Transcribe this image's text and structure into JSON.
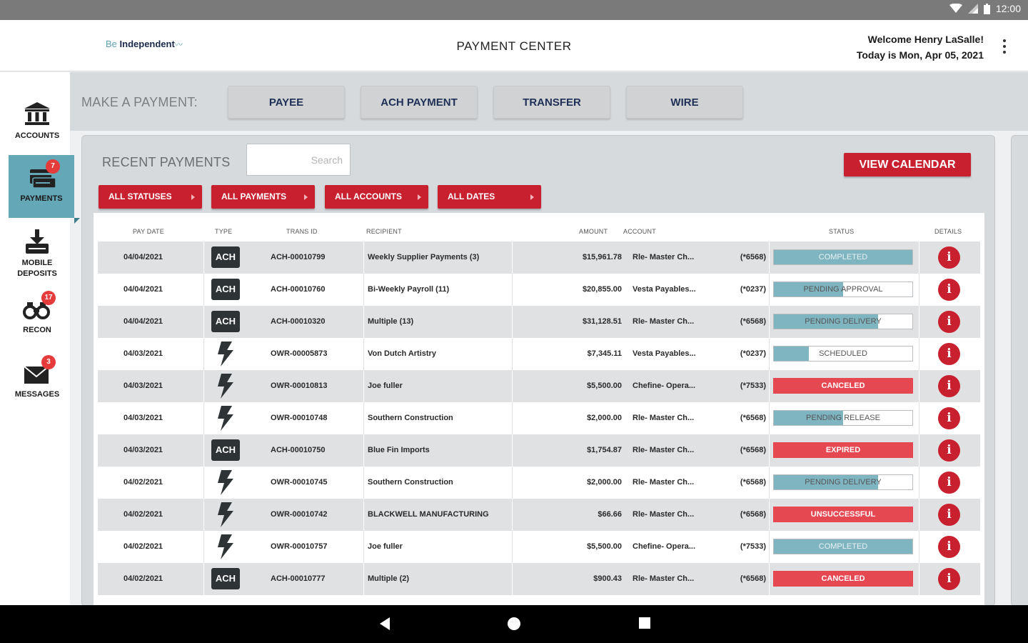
{
  "status_bar": {
    "time": "12:00"
  },
  "header": {
    "logo_pre": "Be",
    "logo_main": "Independent",
    "title": "PAYMENT CENTER",
    "welcome": "Welcome Henry LaSalle!",
    "date": "Today is Mon, Apr 05, 2021"
  },
  "sidebar": {
    "items": [
      {
        "label": "ACCOUNTS",
        "icon": "bank-icon"
      },
      {
        "label": "PAYMENTS",
        "icon": "payments-icon",
        "badge": "7",
        "active": true
      },
      {
        "label_line1": "MOBILE",
        "label_line2": "DEPOSITS",
        "icon": "mobile-deposit-icon"
      },
      {
        "label": "RECON",
        "icon": "binoculars-icon",
        "badge": "17"
      },
      {
        "label": "MESSAGES",
        "icon": "envelope-icon",
        "badge": "3"
      }
    ]
  },
  "make_payment": {
    "label": "MAKE A PAYMENT:",
    "buttons": [
      "PAYEE",
      "ACH PAYMENT",
      "TRANSFER",
      "WIRE"
    ]
  },
  "recent": {
    "title": "RECENT PAYMENTS",
    "search_placeholder": "Search",
    "view_calendar": "VIEW CALENDAR",
    "filters": [
      "ALL STATUSES",
      "ALL PAYMENTS",
      "ALL ACCOUNTS",
      "ALL DATES"
    ],
    "columns": {
      "pay_date": "PAY DATE",
      "type": "TYPE",
      "trans_id": "TRANS ID",
      "recipient": "RECIPIENT",
      "amount": "AMOUNT",
      "account": "ACCOUNT",
      "status": "STATUS",
      "details": "DETAILS"
    },
    "rows": [
      {
        "date": "04/04/2021",
        "type": "ACH",
        "trans_id": "ACH-00010799",
        "recipient": "Weekly Supplier Payments (3)",
        "amount": "$15,961.78",
        "account": "Rle- Master Ch...",
        "acct_suffix": "(*6568)",
        "status": "COMPLETED",
        "status_color": "teal",
        "progress": 1.0
      },
      {
        "date": "04/04/2021",
        "type": "ACH",
        "trans_id": "ACH-00010760",
        "recipient": "Bi-Weekly Payroll (11)",
        "amount": "$20,855.00",
        "account": "Vesta Payables...",
        "acct_suffix": "(*0237)",
        "status": "PENDING APPROVAL",
        "status_color": "teal",
        "progress": 0.5
      },
      {
        "date": "04/04/2021",
        "type": "ACH",
        "trans_id": "ACH-00010320",
        "recipient": "Multiple (13)",
        "amount": "$31,128.51",
        "account": "Rle- Master Ch...",
        "acct_suffix": "(*6568)",
        "status": "PENDING DELIVERY",
        "status_color": "teal",
        "progress": 0.75
      },
      {
        "date": "04/03/2021",
        "type": "WIRE",
        "trans_id": "OWR-00005873",
        "recipient": "Von Dutch Artistry",
        "amount": "$7,345.11",
        "account": "Vesta Payables...",
        "acct_suffix": "(*0237)",
        "status": "SCHEDULED",
        "status_color": "teal",
        "progress": 0.25
      },
      {
        "date": "04/03/2021",
        "type": "WIRE",
        "trans_id": "OWR-00010813",
        "recipient": "Joe fuller",
        "amount": "$5,500.00",
        "account": "Chefine- Opera...",
        "acct_suffix": "(*7533)",
        "status": "CANCELED",
        "status_color": "red",
        "progress": 1.0
      },
      {
        "date": "04/03/2021",
        "type": "WIRE",
        "trans_id": "OWR-00010748",
        "recipient": "Southern Construction",
        "amount": "$2,000.00",
        "account": "Rle- Master Ch...",
        "acct_suffix": "(*6568)",
        "status": "PENDING RELEASE",
        "status_color": "teal",
        "progress": 0.5
      },
      {
        "date": "04/03/2021",
        "type": "ACH",
        "trans_id": "ACH-00010750",
        "recipient": "Blue Fin Imports",
        "amount": "$1,754.87",
        "account": "Rle- Master Ch...",
        "acct_suffix": "(*6568)",
        "status": "EXPIRED",
        "status_color": "red",
        "progress": 1.0
      },
      {
        "date": "04/02/2021",
        "type": "WIRE",
        "trans_id": "OWR-00010745",
        "recipient": "Southern Construction",
        "amount": "$2,000.00",
        "account": "Rle- Master Ch...",
        "acct_suffix": "(*6568)",
        "status": "PENDING DELIVERY",
        "status_color": "teal",
        "progress": 0.75
      },
      {
        "date": "04/02/2021",
        "type": "WIRE",
        "trans_id": "OWR-00010742",
        "recipient": "BLACKWELL MANUFACTURING",
        "amount": "$66.66",
        "account": "Rle- Master Ch...",
        "acct_suffix": "(*6568)",
        "status": "UNSUCCESSFUL",
        "status_color": "red",
        "progress": 1.0
      },
      {
        "date": "04/02/2021",
        "type": "WIRE",
        "trans_id": "OWR-00010757",
        "recipient": "Joe fuller",
        "amount": "$5,500.00",
        "account": "Chefine- Opera...",
        "acct_suffix": "(*7533)",
        "status": "COMPLETED",
        "status_color": "teal",
        "progress": 1.0
      },
      {
        "date": "04/02/2021",
        "type": "ACH",
        "trans_id": "ACH-00010777",
        "recipient": "Multiple (2)",
        "amount": "$900.43",
        "account": "Rle- Master Ch...",
        "acct_suffix": "(*6568)",
        "status": "CANCELED",
        "status_color": "red",
        "progress": 1.0
      }
    ]
  },
  "colors": {
    "brand_red": "#c8202f",
    "status_red": "#e54850",
    "teal": "#7fb5c1",
    "nav_active": "#64a7b7",
    "navy_text": "#1f2f55"
  },
  "icons": {
    "info": "i",
    "details_icon": "info-circle-icon",
    "wire_icon": "lightning-bolt-icon"
  }
}
